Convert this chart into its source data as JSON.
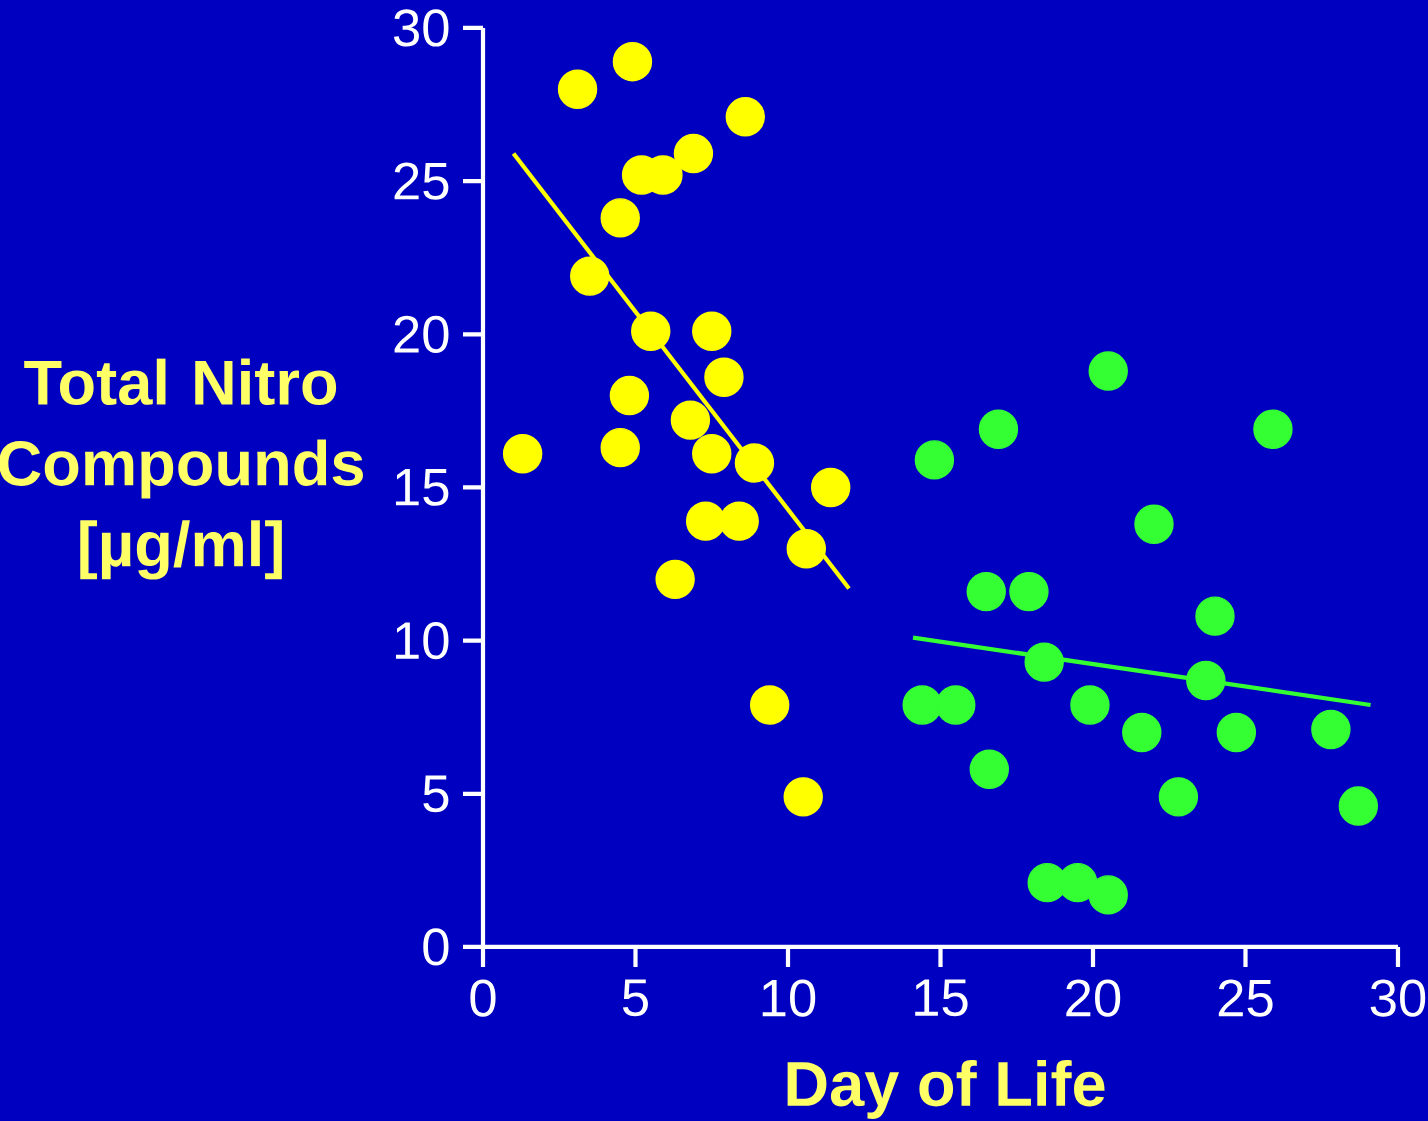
{
  "chart_data": {
    "type": "scatter",
    "xlabel": "Day of Life",
    "ylabel": "Total Nitro Compounds [µg/ml]",
    "xlim": [
      0,
      30
    ],
    "ylim": [
      0,
      30
    ],
    "xticks": [
      0,
      5,
      10,
      15,
      20,
      25,
      30
    ],
    "yticks": [
      0,
      5,
      10,
      15,
      20,
      25,
      30
    ],
    "grid": false,
    "series": [
      {
        "marker": "circle",
        "color": "#ffff00",
        "x": [
          1.3,
          3.1,
          4.9,
          4.5,
          5.2,
          5.9,
          6.9,
          8.6,
          3.5,
          5.5,
          7.5,
          7.9,
          4.8,
          6.8,
          4.5,
          7.5,
          8.9,
          11.4,
          7.3,
          8.4,
          10.6,
          6.3,
          9.4,
          10.5
        ],
        "values": [
          16.1,
          28.0,
          28.9,
          23.8,
          25.2,
          25.2,
          25.9,
          27.1,
          21.9,
          20.1,
          20.1,
          18.6,
          18.0,
          17.2,
          16.3,
          16.1,
          15.8,
          15.0,
          13.9,
          13.9,
          13.0,
          12.0,
          7.9,
          4.9
        ]
      },
      {
        "marker": "circle",
        "color": "#33ff33",
        "x": [
          14.8,
          16.9,
          20.5,
          25.9,
          22.0,
          16.5,
          17.9,
          24.0,
          18.4,
          23.7,
          14.4,
          15.5,
          19.9,
          21.6,
          24.7,
          27.8,
          16.6,
          22.8,
          28.7,
          18.5,
          19.5,
          20.5
        ],
        "values": [
          15.9,
          16.9,
          18.8,
          16.9,
          13.8,
          11.6,
          11.6,
          10.8,
          9.3,
          8.7,
          7.9,
          7.9,
          7.9,
          7.0,
          7.0,
          7.1,
          5.8,
          4.9,
          4.6,
          2.1,
          2.1,
          1.7
        ]
      },
      {
        "type": "line",
        "marker": "none",
        "color": "#ffff00",
        "x": [
          1.0,
          12.0
        ],
        "values": [
          25.9,
          11.7
        ]
      },
      {
        "type": "line",
        "marker": "none",
        "color": "#33ff33",
        "x": [
          14.1,
          29.1
        ],
        "values": [
          10.1,
          7.9
        ]
      }
    ]
  }
}
